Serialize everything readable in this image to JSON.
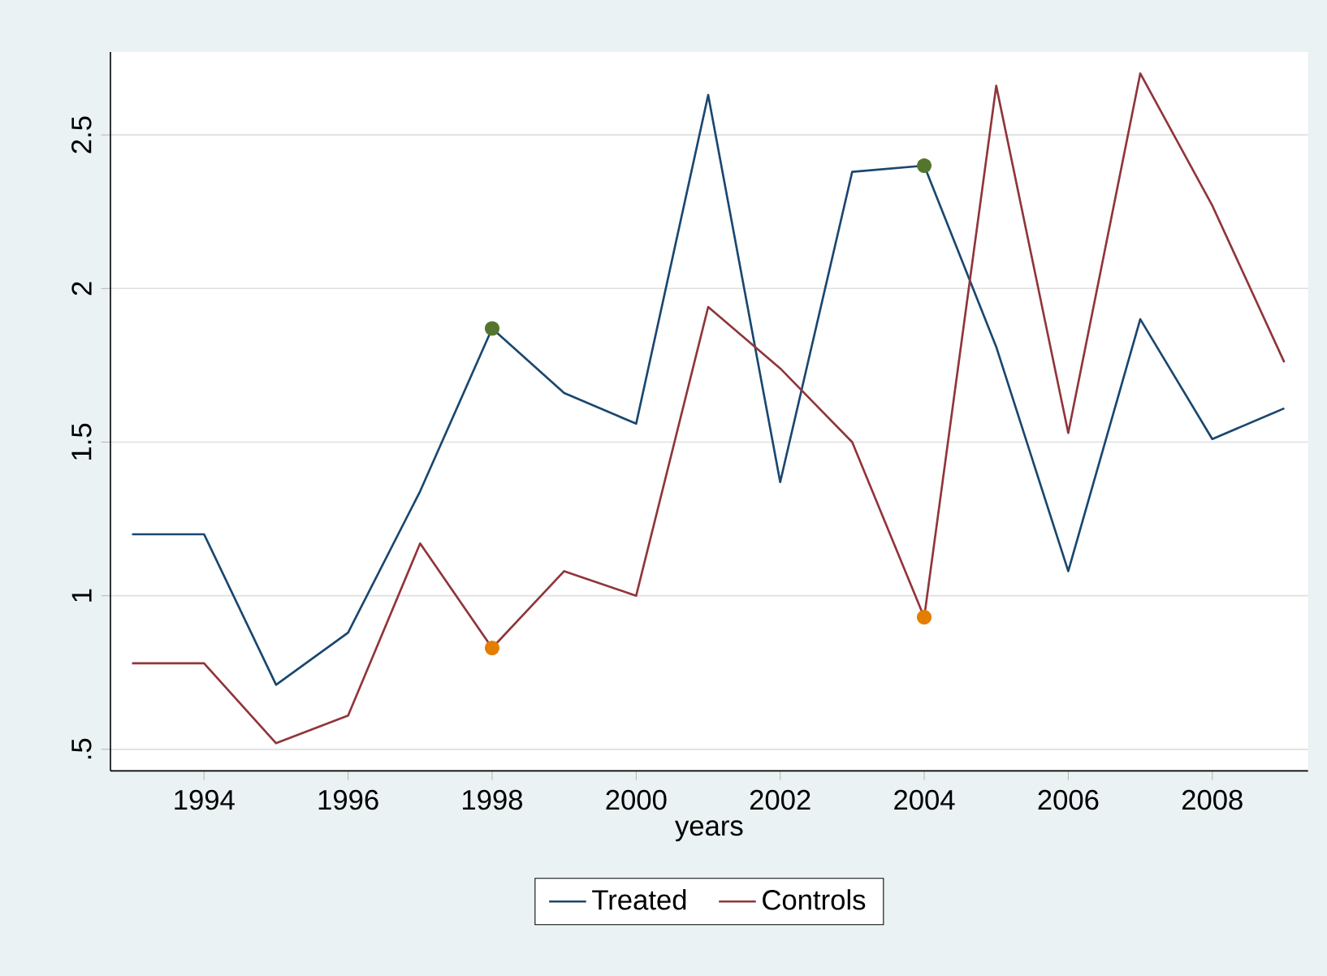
{
  "chart_data": {
    "type": "line",
    "xlabel": "years",
    "x": [
      1993,
      1994,
      1995,
      1996,
      1997,
      1998,
      1999,
      2000,
      2001,
      2002,
      2003,
      2004,
      2005,
      2006,
      2007,
      2008,
      2009
    ],
    "series": [
      {
        "name": "Treated",
        "color": "#1a476f",
        "values": [
          1.2,
          1.2,
          0.71,
          0.88,
          1.34,
          1.87,
          1.66,
          1.56,
          2.63,
          1.37,
          2.38,
          2.4,
          1.81,
          1.08,
          1.9,
          1.51,
          1.61
        ]
      },
      {
        "name": "Controls",
        "color": "#90353b",
        "values": [
          0.78,
          0.78,
          0.52,
          0.61,
          1.17,
          0.83,
          1.08,
          1.0,
          1.94,
          1.74,
          1.5,
          0.93,
          2.66,
          1.53,
          2.7,
          2.27,
          1.76
        ]
      },
      {
        "type": "scatter",
        "marker": "circle",
        "color": "#55752f",
        "values": [
          null,
          null,
          null,
          null,
          null,
          1.87,
          null,
          null,
          null,
          null,
          null,
          2.4,
          null,
          null,
          null,
          null,
          null
        ]
      },
      {
        "type": "scatter",
        "marker": "circle",
        "color": "#e37e00",
        "values": [
          null,
          null,
          null,
          null,
          null,
          0.83,
          null,
          null,
          null,
          null,
          null,
          0.93,
          null,
          null,
          null,
          null,
          null
        ]
      }
    ],
    "xlim": [
      1992.7,
      2009.33
    ],
    "ylim": [
      0.43,
      2.77
    ],
    "xticks": [
      1994,
      1996,
      1998,
      2000,
      2002,
      2004,
      2006,
      2008
    ],
    "yticks": [
      {
        "value": 0.5,
        "label": ".5"
      },
      1,
      1.5,
      2,
      2.5
    ],
    "grid": "y",
    "legend": "bottom"
  }
}
